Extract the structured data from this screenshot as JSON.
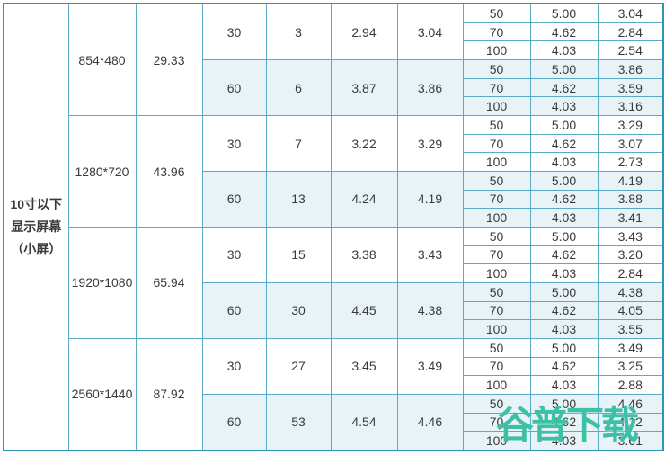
{
  "colors": {
    "inner_border": "#5aa9c5",
    "outer_border": "#2f94b6",
    "shaded_row_bg": "#e8f3f7",
    "plain_row_bg": "#ffffff",
    "text": "#3a3a3a",
    "watermark": "#3cc0a6"
  },
  "watermark": {
    "text": "谷普下载"
  },
  "table": {
    "screen_label_lines": [
      "10寸以下",
      "显示屏幕",
      "（小屏）"
    ],
    "groups": [
      {
        "resolution": "854*480",
        "size": "29.33",
        "fps_rows": [
          {
            "fps": "30",
            "frames": "3",
            "v1": "2.94",
            "v2": "3.04",
            "shaded": false,
            "subrows": [
              [
                "50",
                "5.00",
                "3.04"
              ],
              [
                "70",
                "4.62",
                "2.84"
              ],
              [
                "100",
                "4.03",
                "2.54"
              ]
            ]
          },
          {
            "fps": "60",
            "frames": "6",
            "v1": "3.87",
            "v2": "3.86",
            "shaded": true,
            "subrows": [
              [
                "50",
                "5.00",
                "3.86"
              ],
              [
                "70",
                "4.62",
                "3.59"
              ],
              [
                "100",
                "4.03",
                "3.16"
              ]
            ]
          }
        ]
      },
      {
        "resolution": "1280*720",
        "size": "43.96",
        "fps_rows": [
          {
            "fps": "30",
            "frames": "7",
            "v1": "3.22",
            "v2": "3.29",
            "shaded": false,
            "subrows": [
              [
                "50",
                "5.00",
                "3.29"
              ],
              [
                "70",
                "4.62",
                "3.07"
              ],
              [
                "100",
                "4.03",
                "2.73"
              ]
            ]
          },
          {
            "fps": "60",
            "frames": "13",
            "v1": "4.24",
            "v2": "4.19",
            "shaded": true,
            "subrows": [
              [
                "50",
                "5.00",
                "4.19"
              ],
              [
                "70",
                "4.62",
                "3.88"
              ],
              [
                "100",
                "4.03",
                "3.41"
              ]
            ]
          }
        ]
      },
      {
        "resolution": "1920*1080",
        "size": "65.94",
        "fps_rows": [
          {
            "fps": "30",
            "frames": "15",
            "v1": "3.38",
            "v2": "3.43",
            "shaded": false,
            "subrows": [
              [
                "50",
                "5.00",
                "3.43"
              ],
              [
                "70",
                "4.62",
                "3.20"
              ],
              [
                "100",
                "4.03",
                "2.84"
              ]
            ]
          },
          {
            "fps": "60",
            "frames": "30",
            "v1": "4.45",
            "v2": "4.38",
            "shaded": true,
            "subrows": [
              [
                "50",
                "5.00",
                "4.38"
              ],
              [
                "70",
                "4.62",
                "4.05"
              ],
              [
                "100",
                "4.03",
                "3.55"
              ]
            ]
          }
        ]
      },
      {
        "resolution": "2560*1440",
        "size": "87.92",
        "fps_rows": [
          {
            "fps": "30",
            "frames": "27",
            "v1": "3.45",
            "v2": "3.49",
            "shaded": false,
            "subrows": [
              [
                "50",
                "5.00",
                "3.49"
              ],
              [
                "70",
                "4.62",
                "3.25"
              ],
              [
                "100",
                "4.03",
                "2.88"
              ]
            ]
          },
          {
            "fps": "60",
            "frames": "53",
            "v1": "4.54",
            "v2": "4.46",
            "shaded": true,
            "subrows": [
              [
                "50",
                "5.00",
                "4.46"
              ],
              [
                "70",
                "4.62",
                "4.12"
              ],
              [
                "100",
                "4.03",
                "3.61"
              ]
            ]
          }
        ]
      }
    ]
  }
}
